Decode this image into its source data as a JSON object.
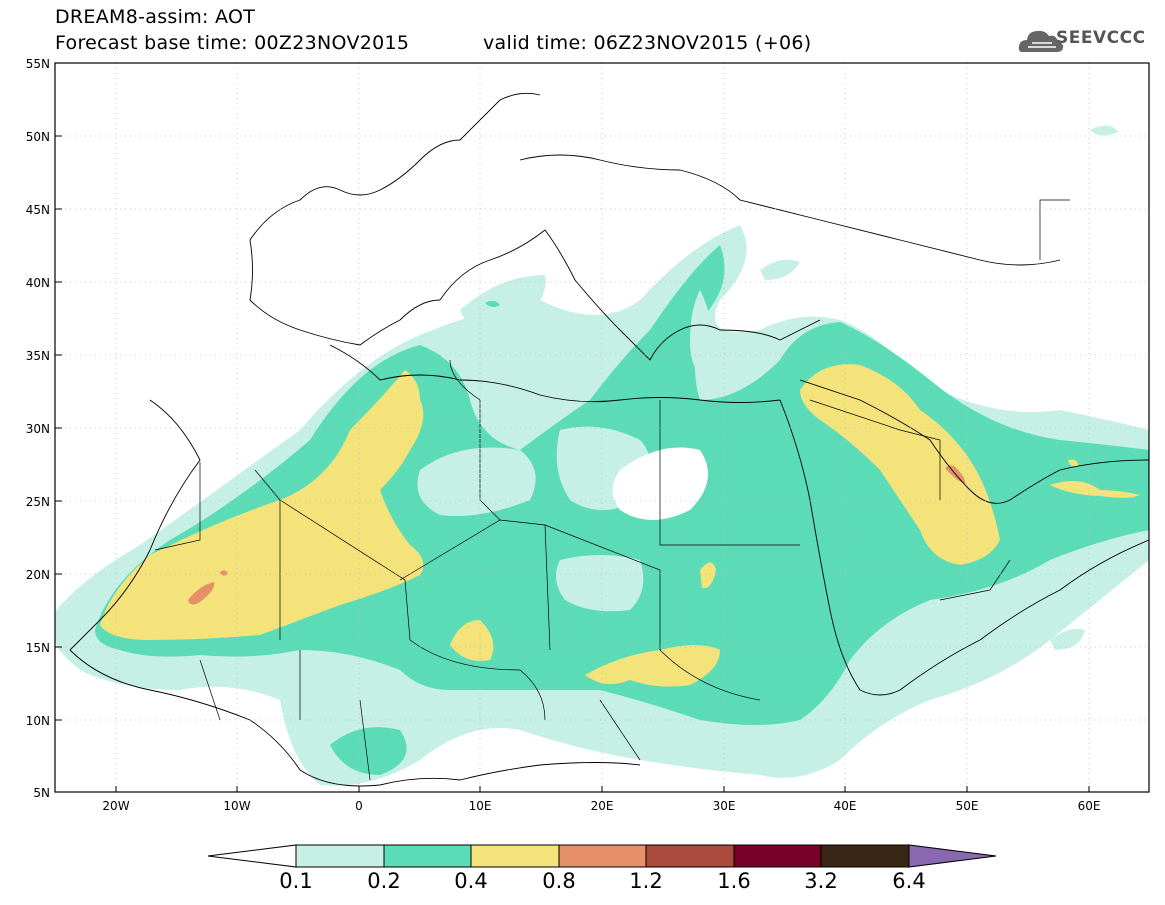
{
  "header": {
    "title_line1": "DREAM8-assim: AOT",
    "title_line2": "Forecast base time: 00Z23NOV2015",
    "valid_time": "valid time: 06Z23NOV2015 (+06)",
    "logo_text": "SEEVCCC"
  },
  "map": {
    "lat_labels": [
      "55N",
      "50N",
      "45N",
      "40N",
      "35N",
      "30N",
      "25N",
      "20N",
      "15N",
      "10N",
      "5N"
    ],
    "lon_labels": [
      "20W",
      "10W",
      "0",
      "10E",
      "20E",
      "30E",
      "40E",
      "50E",
      "60E"
    ],
    "lat_range": [
      5,
      55
    ],
    "lon_range": [
      -25,
      65
    ]
  },
  "colorbar": {
    "labels": [
      "0.1",
      "0.2",
      "0.4",
      "0.8",
      "1.2",
      "1.6",
      "3.2",
      "6.4"
    ],
    "colors": [
      "#ffffff",
      "#c6f0e6",
      "#5cdcb6",
      "#f4e37a",
      "#e6906a",
      "#aa4a3c",
      "#780028",
      "#3a2614",
      "#8a68b0"
    ]
  }
}
